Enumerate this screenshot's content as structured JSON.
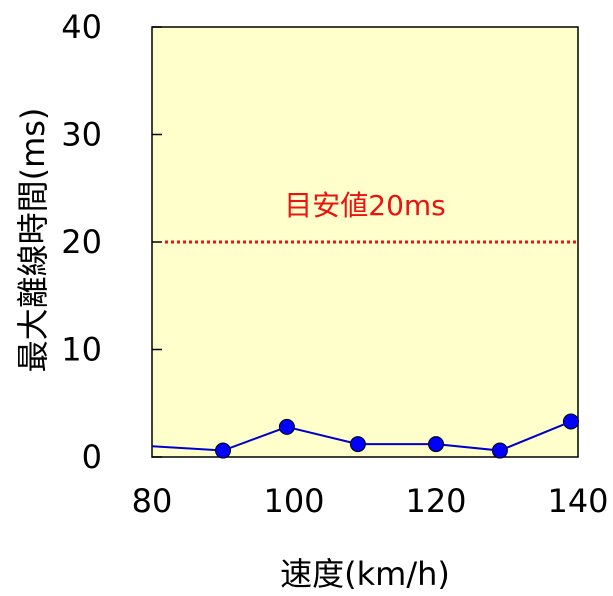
{
  "chart_data": {
    "type": "line",
    "xlabel": "速度(km/h)",
    "ylabel": "最大離線時間(ms)",
    "xlim": [
      80,
      140
    ],
    "ylim": [
      0,
      40
    ],
    "x_ticks": [
      "80",
      "100",
      "120",
      "140"
    ],
    "y_ticks": [
      "0",
      "10",
      "20",
      "30",
      "40"
    ],
    "grid": false,
    "x": [
      80,
      90,
      99,
      109,
      120,
      129,
      139
    ],
    "y": [
      1.0,
      0.6,
      2.8,
      1.2,
      1.2,
      0.6,
      3.3
    ],
    "reference_line": {
      "value": 20,
      "label": "目安値20ms",
      "color": "#ee1111"
    },
    "colors": {
      "plot_background": "#ffffcc",
      "series_line": "#0000cc",
      "marker_fill": "#0000ff"
    }
  }
}
